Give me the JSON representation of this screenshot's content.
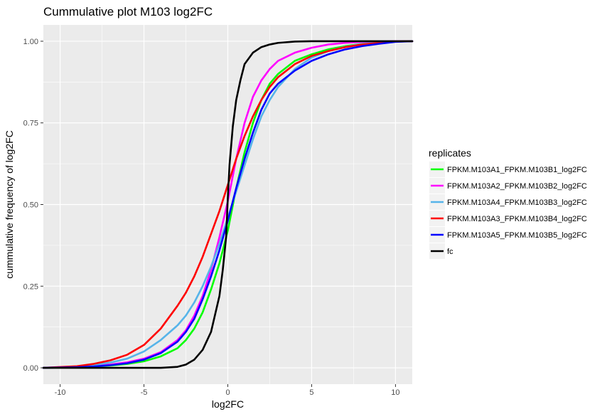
{
  "chart_data": {
    "type": "line",
    "title": "Cummulative plot M103 log2FC",
    "xlabel": "log2FC",
    "ylabel": "cummulative frequency of log2FC",
    "xlim": [
      -11,
      11
    ],
    "ylim": [
      -0.05,
      1.05
    ],
    "x_ticks": [
      -10,
      -5,
      0,
      5,
      10
    ],
    "x_tick_labels": [
      "-10",
      "-5",
      "0",
      "5",
      "10"
    ],
    "y_ticks": [
      0,
      0.25,
      0.5,
      0.75,
      1.0
    ],
    "y_tick_labels": [
      "0.00",
      "0.25",
      "0.50",
      "0.75",
      "1.00"
    ],
    "grid": true,
    "legend": {
      "title": "replicates",
      "position": "right"
    },
    "series": [
      {
        "name": "FPKM.M103A1_FPKM.M103B1_log2FC",
        "color": "#00ff00",
        "x": [
          -11,
          -9,
          -8,
          -7,
          -6,
          -5,
          -4,
          -3,
          -2.5,
          -2,
          -1.5,
          -1,
          -0.5,
          0,
          0.5,
          1,
          1.5,
          2,
          2.5,
          3,
          4,
          5,
          6,
          7,
          8,
          9,
          10,
          11
        ],
        "y": [
          0,
          0.002,
          0.004,
          0.007,
          0.012,
          0.02,
          0.035,
          0.06,
          0.085,
          0.12,
          0.17,
          0.24,
          0.32,
          0.42,
          0.55,
          0.66,
          0.75,
          0.82,
          0.87,
          0.9,
          0.94,
          0.96,
          0.975,
          0.985,
          0.992,
          0.996,
          0.999,
          1.0
        ]
      },
      {
        "name": "FPKM.M103A2_FPKM.M103B2_log2FC",
        "color": "#ff00ff",
        "x": [
          -11,
          -9,
          -8,
          -7,
          -6,
          -5,
          -4,
          -3,
          -2.5,
          -2,
          -1.5,
          -1,
          -0.5,
          0,
          0.5,
          1,
          1.5,
          2,
          2.5,
          3,
          4,
          5,
          6,
          7,
          8,
          9,
          10,
          11
        ],
        "y": [
          0,
          0.003,
          0.006,
          0.01,
          0.017,
          0.028,
          0.048,
          0.085,
          0.115,
          0.16,
          0.22,
          0.3,
          0.4,
          0.51,
          0.64,
          0.75,
          0.83,
          0.88,
          0.915,
          0.94,
          0.965,
          0.98,
          0.99,
          0.995,
          0.998,
          0.999,
          1.0,
          1.0
        ]
      },
      {
        "name": "FPKM.M103A4_FPKM.M103B3_log2FC",
        "color": "#56b4e9",
        "x": [
          -11,
          -9,
          -8,
          -7,
          -6,
          -5,
          -4,
          -3,
          -2.5,
          -2,
          -1.5,
          -1,
          -0.5,
          0,
          0.5,
          1,
          1.5,
          2,
          2.5,
          3,
          4,
          5,
          6,
          7,
          8,
          9,
          10,
          11
        ],
        "y": [
          0,
          0.004,
          0.009,
          0.016,
          0.028,
          0.05,
          0.085,
          0.13,
          0.16,
          0.2,
          0.25,
          0.31,
          0.38,
          0.46,
          0.54,
          0.62,
          0.7,
          0.77,
          0.82,
          0.86,
          0.915,
          0.95,
          0.97,
          0.983,
          0.992,
          0.996,
          0.999,
          1.0
        ]
      },
      {
        "name": "FPKM.M103A3_FPKM.M103B4_log2FC",
        "color": "#ff0000",
        "x": [
          -11,
          -9,
          -8,
          -7,
          -6,
          -5,
          -4,
          -3,
          -2.5,
          -2,
          -1.5,
          -1,
          -0.5,
          0,
          0.5,
          1,
          1.5,
          2,
          2.5,
          3,
          4,
          5,
          6,
          7,
          8,
          9,
          10,
          11
        ],
        "y": [
          0,
          0.005,
          0.012,
          0.023,
          0.04,
          0.07,
          0.12,
          0.19,
          0.23,
          0.28,
          0.34,
          0.41,
          0.48,
          0.56,
          0.64,
          0.71,
          0.77,
          0.82,
          0.86,
          0.89,
          0.93,
          0.955,
          0.97,
          0.982,
          0.99,
          0.995,
          0.999,
          1.0
        ]
      },
      {
        "name": "FPKM.M103A5_FPKM.M103B5_log2FC",
        "color": "#0000ff",
        "x": [
          -11,
          -9,
          -8,
          -7,
          -6,
          -5,
          -4,
          -3,
          -2.5,
          -2,
          -1.5,
          -1,
          -0.5,
          0,
          0.5,
          1,
          1.5,
          2,
          2.5,
          3,
          4,
          5,
          6,
          7,
          8,
          9,
          10,
          11
        ],
        "y": [
          0,
          0.002,
          0.004,
          0.008,
          0.014,
          0.025,
          0.045,
          0.08,
          0.11,
          0.15,
          0.21,
          0.28,
          0.36,
          0.45,
          0.55,
          0.64,
          0.72,
          0.79,
          0.84,
          0.87,
          0.91,
          0.94,
          0.96,
          0.975,
          0.985,
          0.992,
          0.998,
          1.0
        ]
      },
      {
        "name": "fc",
        "color": "#000000",
        "x": [
          -11,
          -5,
          -4,
          -3,
          -2.5,
          -2,
          -1.5,
          -1,
          -0.5,
          -0.3,
          -0.1,
          0,
          0.1,
          0.3,
          0.5,
          0.75,
          1,
          1.5,
          2,
          2.5,
          3,
          4,
          5,
          11
        ],
        "y": [
          0,
          0,
          0,
          0.003,
          0.01,
          0.025,
          0.055,
          0.11,
          0.22,
          0.3,
          0.4,
          0.52,
          0.62,
          0.74,
          0.82,
          0.88,
          0.93,
          0.965,
          0.982,
          0.99,
          0.995,
          0.999,
          1.0,
          1.0
        ]
      }
    ]
  }
}
